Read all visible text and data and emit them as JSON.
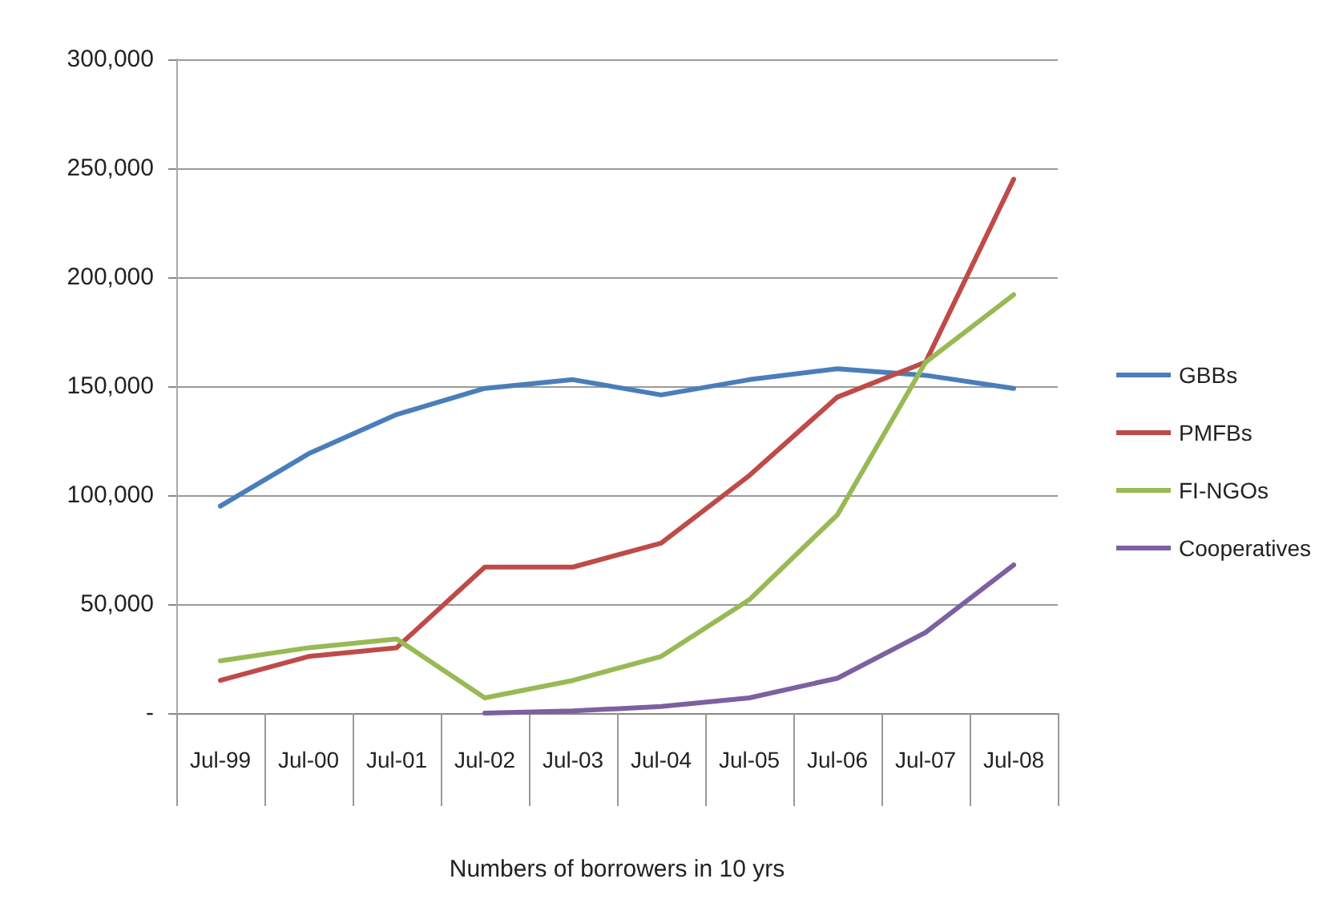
{
  "chart_data": {
    "type": "line",
    "xlabel": "Numbers of borrowers in 10 yrs",
    "categories": [
      "Jul-99",
      "Jul-00",
      "Jul-01",
      "Jul-02",
      "Jul-03",
      "Jul-04",
      "Jul-05",
      "Jul-06",
      "Jul-07",
      "Jul-08"
    ],
    "series": [
      {
        "name": "GBBs",
        "color": "#4a7ebb",
        "values": [
          95000,
          119000,
          137000,
          149000,
          153000,
          146000,
          153000,
          158000,
          155000,
          149000
        ]
      },
      {
        "name": "PMFBs",
        "color": "#be4b48",
        "values": [
          15000,
          26000,
          30000,
          67000,
          67000,
          78000,
          109000,
          145000,
          161000,
          245000
        ]
      },
      {
        "name": "FI-NGOs",
        "color": "#98b954",
        "values": [
          24000,
          30000,
          34000,
          7000,
          15000,
          26000,
          52000,
          91000,
          161000,
          192000
        ]
      },
      {
        "name": "Cooperatives",
        "color": "#7d60a0",
        "values": [
          null,
          null,
          null,
          0,
          1000,
          3000,
          7000,
          16000,
          37000,
          68000
        ]
      }
    ],
    "ylim": [
      0,
      300000
    ],
    "yticks": [
      {
        "value": 0,
        "label": "-"
      },
      {
        "value": 50000,
        "label": "50,000"
      },
      {
        "value": 100000,
        "label": "100,000"
      },
      {
        "value": 150000,
        "label": "150,000"
      },
      {
        "value": 200000,
        "label": "200,000"
      },
      {
        "value": 250000,
        "label": "250,000"
      },
      {
        "value": 300000,
        "label": "300,000"
      }
    ],
    "grid": "y",
    "legend": "right",
    "marker": "none",
    "line_style": "solid"
  }
}
